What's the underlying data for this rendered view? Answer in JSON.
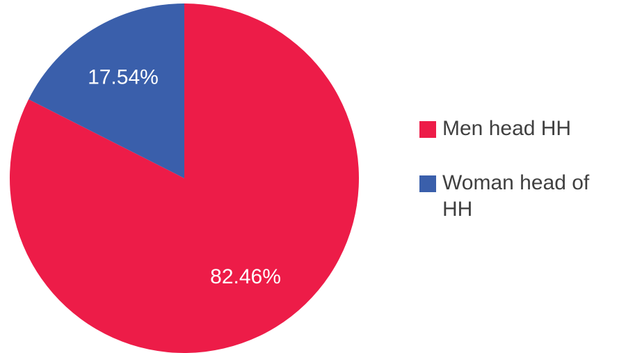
{
  "chart_data": {
    "type": "pie",
    "categories": [
      "Men head HH",
      "Woman head of HH"
    ],
    "values": [
      82.46,
      17.54
    ],
    "value_labels": [
      "82.46%",
      "17.54%"
    ],
    "colors": [
      "#ED1C48",
      "#3A5FAB"
    ],
    "legend": "right"
  }
}
